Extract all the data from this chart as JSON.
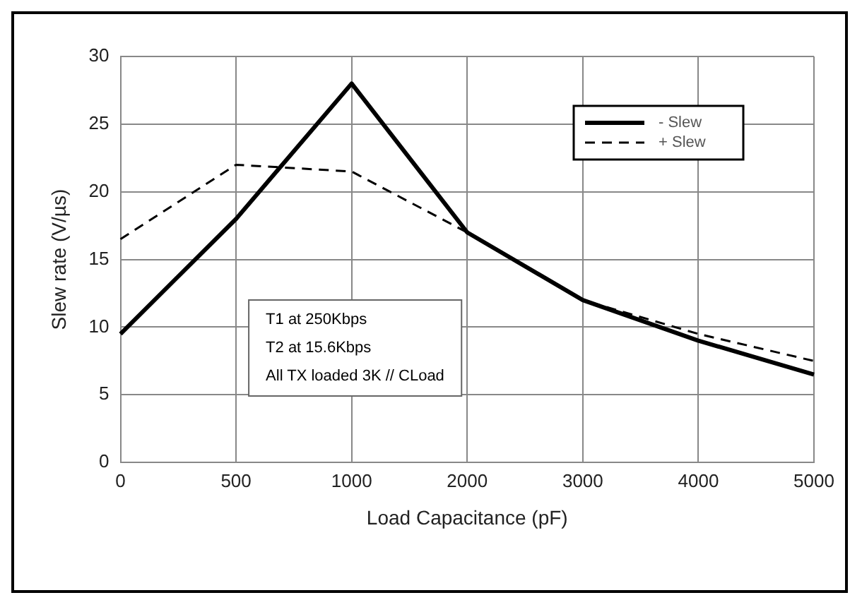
{
  "chart_data": {
    "type": "line",
    "xlabel": "Load Capacitance (pF)",
    "ylabel": "Slew rate (V/µs)",
    "categories": [
      "0",
      "500",
      "1000",
      "2000",
      "3000",
      "4000",
      "5000"
    ],
    "series": [
      {
        "name": "- Slew",
        "color": "#000000",
        "line_style": "solid",
        "values": [
          9.5,
          18,
          28,
          17,
          12,
          9,
          6.5
        ]
      },
      {
        "name": "+ Slew",
        "color": "#000000",
        "line_style": "dashed",
        "values": [
          16.5,
          22,
          21.5,
          17,
          12,
          9.5,
          7.5
        ]
      }
    ],
    "ylim": [
      0,
      30
    ],
    "yticks": [
      0,
      5,
      10,
      15,
      20,
      25,
      30
    ],
    "grid": true,
    "legend": "top right",
    "marker": "none",
    "annotations": [
      "T1 at 250Kbps\nT2 at 15.6Kbps\nAll TX loaded 3K // CLoad"
    ]
  }
}
